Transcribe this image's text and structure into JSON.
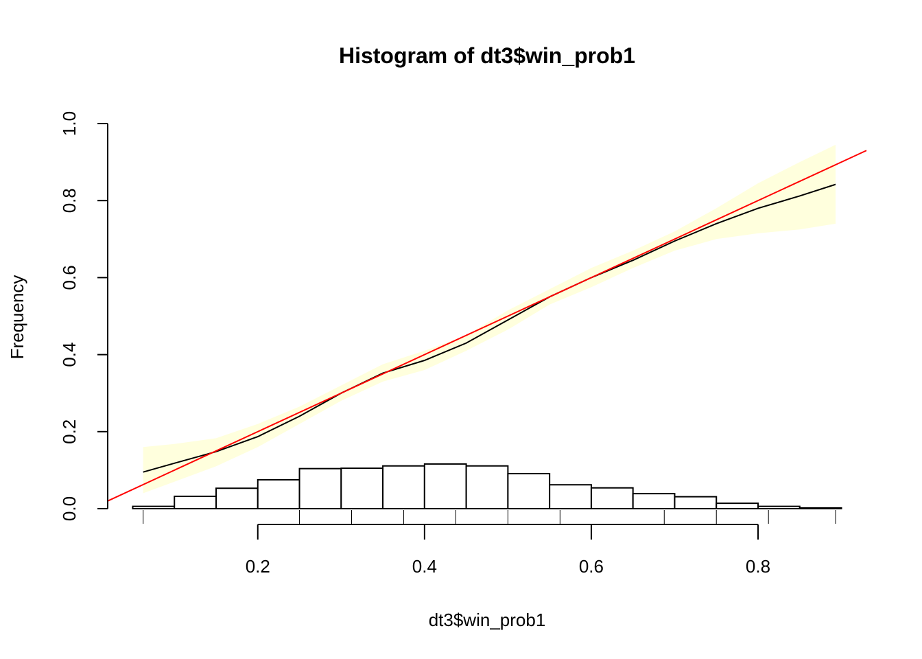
{
  "chart_data": {
    "type": "histogram",
    "title": "Histogram of dt3$win_prob1",
    "xlabel": "dt3$win_prob1",
    "ylabel": "Frequency",
    "xlim": [
      0.02,
      0.93
    ],
    "ylim": [
      0.0,
      1.0
    ],
    "x_ticks": [
      "0.2",
      "0.4",
      "0.6",
      "0.8"
    ],
    "x_tick_values": [
      0.2,
      0.4,
      0.6,
      0.8
    ],
    "y_ticks": [
      "0.0",
      "0.2",
      "0.4",
      "0.6",
      "0.8",
      "1.0"
    ],
    "y_tick_values": [
      0.0,
      0.2,
      0.4,
      0.6,
      0.8,
      1.0
    ],
    "colors": {
      "bars_fill": "#ffffff",
      "bars_stroke": "#000000",
      "band": "#ffffdd",
      "smooth_line": "#000000",
      "reference_line": "#ff0000"
    },
    "histogram": {
      "bin_edges": [
        0.05,
        0.1,
        0.15,
        0.2,
        0.25,
        0.3,
        0.35,
        0.4,
        0.45,
        0.5,
        0.55,
        0.6,
        0.65,
        0.7,
        0.75,
        0.8,
        0.85,
        0.9
      ],
      "heights": [
        0.006,
        0.032,
        0.053,
        0.075,
        0.104,
        0.105,
        0.111,
        0.116,
        0.111,
        0.091,
        0.062,
        0.054,
        0.039,
        0.031,
        0.014,
        0.006,
        0.002
      ]
    },
    "smooth_curve": {
      "x": [
        0.0625,
        0.1,
        0.15,
        0.2,
        0.25,
        0.3,
        0.35,
        0.4,
        0.45,
        0.5,
        0.55,
        0.6,
        0.65,
        0.7,
        0.75,
        0.8,
        0.85,
        0.893
      ],
      "y": [
        0.095,
        0.118,
        0.148,
        0.187,
        0.24,
        0.3,
        0.352,
        0.385,
        0.43,
        0.49,
        0.55,
        0.6,
        0.645,
        0.695,
        0.74,
        0.78,
        0.812,
        0.842
      ]
    },
    "confidence_band": {
      "x": [
        0.0625,
        0.1,
        0.15,
        0.2,
        0.25,
        0.3,
        0.35,
        0.4,
        0.45,
        0.5,
        0.55,
        0.6,
        0.65,
        0.7,
        0.75,
        0.8,
        0.85,
        0.893
      ],
      "lower": [
        0.04,
        0.07,
        0.11,
        0.16,
        0.22,
        0.28,
        0.33,
        0.36,
        0.41,
        0.465,
        0.53,
        0.575,
        0.625,
        0.67,
        0.7,
        0.715,
        0.725,
        0.74
      ],
      "upper": [
        0.16,
        0.168,
        0.183,
        0.22,
        0.265,
        0.32,
        0.375,
        0.41,
        0.45,
        0.515,
        0.57,
        0.625,
        0.67,
        0.72,
        0.78,
        0.845,
        0.9,
        0.945
      ]
    },
    "reference_line": {
      "x": [
        0.02,
        0.93
      ],
      "y": [
        0.02,
        0.93
      ]
    },
    "rug_ticks_x": [
      0.0625,
      0.25,
      0.3125,
      0.375,
      0.4375,
      0.5,
      0.5625,
      0.6875,
      0.75,
      0.8125,
      0.893
    ],
    "secondary_axis_range": [
      0.2,
      0.8
    ]
  }
}
